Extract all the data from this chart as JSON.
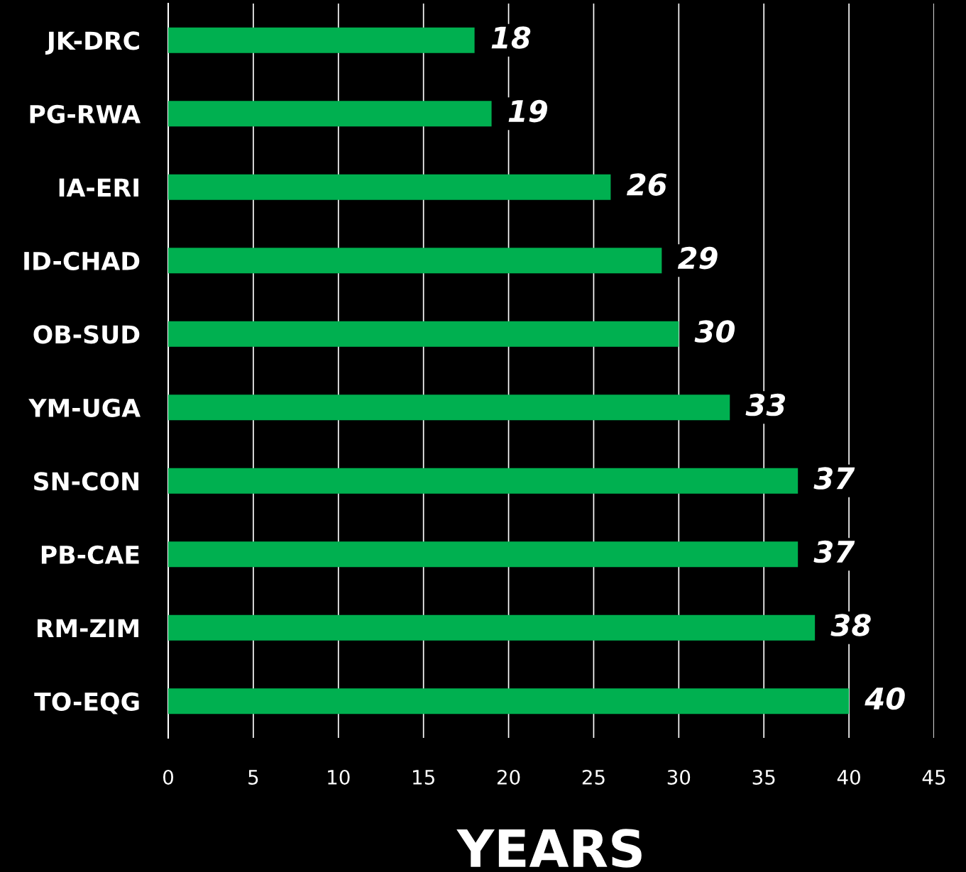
{
  "chart_data": {
    "type": "bar",
    "orientation": "horizontal",
    "categories": [
      "JK-DRC",
      "PG-RWA",
      "IA-ERI",
      "ID-CHAD",
      "OB-SUD",
      "YM-UGA",
      "SN-CON",
      "PB-CAE",
      "RM-ZIM",
      "TO-EQG"
    ],
    "values": [
      18,
      19,
      26,
      29,
      30,
      33,
      37,
      37,
      38,
      40
    ],
    "color": "#00b050",
    "xlabel": "YEARS",
    "xlim": [
      0,
      45
    ],
    "xticks": [
      0,
      5,
      10,
      15,
      20,
      25,
      30,
      35,
      40,
      45
    ],
    "grid": "x",
    "data_labels": true
  }
}
